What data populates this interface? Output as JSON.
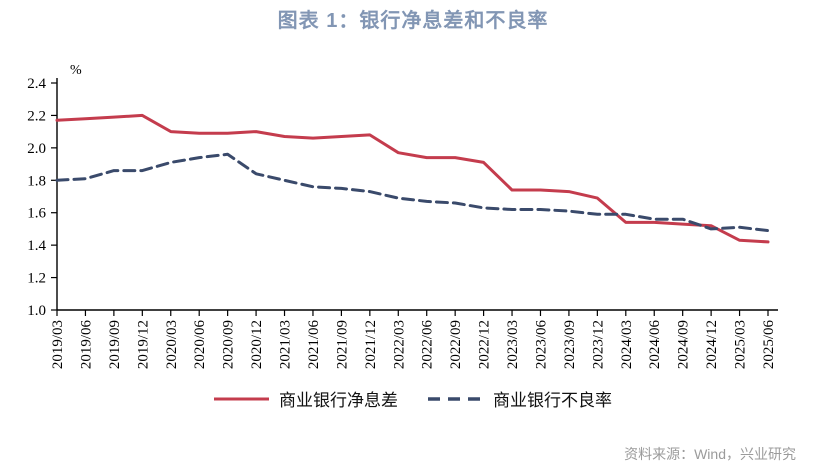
{
  "colors": {
    "title": "#8296B4",
    "source_text": "#9B9B9B",
    "axis": "#000000"
  },
  "source_note": "资料来源：Wind，兴业研究",
  "chart_data": {
    "type": "line",
    "title": "图表 1：银行净息差和不良率",
    "ylabel_unit": "%",
    "ylim": [
      1.0,
      2.4
    ],
    "ytick_labels": [
      "1.0",
      "1.2",
      "1.4",
      "1.6",
      "1.8",
      "2.0",
      "2.2",
      "2.4"
    ],
    "grid": false,
    "legend_position": "bottom",
    "categories": [
      "2019/03",
      "2019/06",
      "2019/09",
      "2019/12",
      "2020/03",
      "2020/06",
      "2020/09",
      "2020/12",
      "2021/03",
      "2021/06",
      "2021/09",
      "2021/12",
      "2022/03",
      "2022/06",
      "2022/09",
      "2022/12",
      "2023/03",
      "2023/06",
      "2023/09",
      "2023/12",
      "2024/03",
      "2024/06",
      "2024/09",
      "2024/12",
      "2025/03",
      "2025/06"
    ],
    "series": [
      {
        "id": "nim",
        "name": "商业银行净息差",
        "style": "solid",
        "color": "#C43C4D",
        "values": [
          2.17,
          2.18,
          2.19,
          2.2,
          2.1,
          2.09,
          2.09,
          2.1,
          2.07,
          2.06,
          2.07,
          2.08,
          1.97,
          1.94,
          1.94,
          1.91,
          1.74,
          1.74,
          1.73,
          1.69,
          1.54,
          1.54,
          1.53,
          1.52,
          1.43,
          1.42
        ]
      },
      {
        "id": "npl",
        "name": "商业银行不良率",
        "style": "dashed",
        "color": "#3A4A6B",
        "values": [
          1.8,
          1.81,
          1.86,
          1.86,
          1.91,
          1.94,
          1.96,
          1.84,
          1.8,
          1.76,
          1.75,
          1.73,
          1.69,
          1.67,
          1.66,
          1.63,
          1.62,
          1.62,
          1.61,
          1.59,
          1.59,
          1.56,
          1.56,
          1.5,
          1.51,
          1.49
        ]
      }
    ]
  }
}
